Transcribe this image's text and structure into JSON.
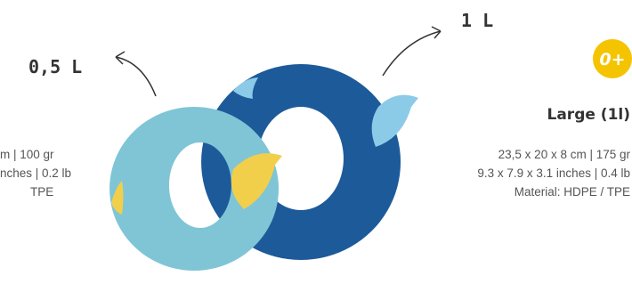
{
  "callouts": {
    "small_volume": "0,5 L",
    "large_volume": "1 L"
  },
  "age_badge": "0+",
  "large": {
    "title": "Large (1l)",
    "specs": [
      "23,5 x 20 x 8 cm | 175 gr",
      "9.3 x 7.9 x 3.1 inches | 0.4 lb",
      "Material: HDPE / TPE"
    ]
  },
  "small": {
    "specs": [
      "m | 100 gr",
      "nches | 0.2 lb",
      "TPE"
    ]
  }
}
